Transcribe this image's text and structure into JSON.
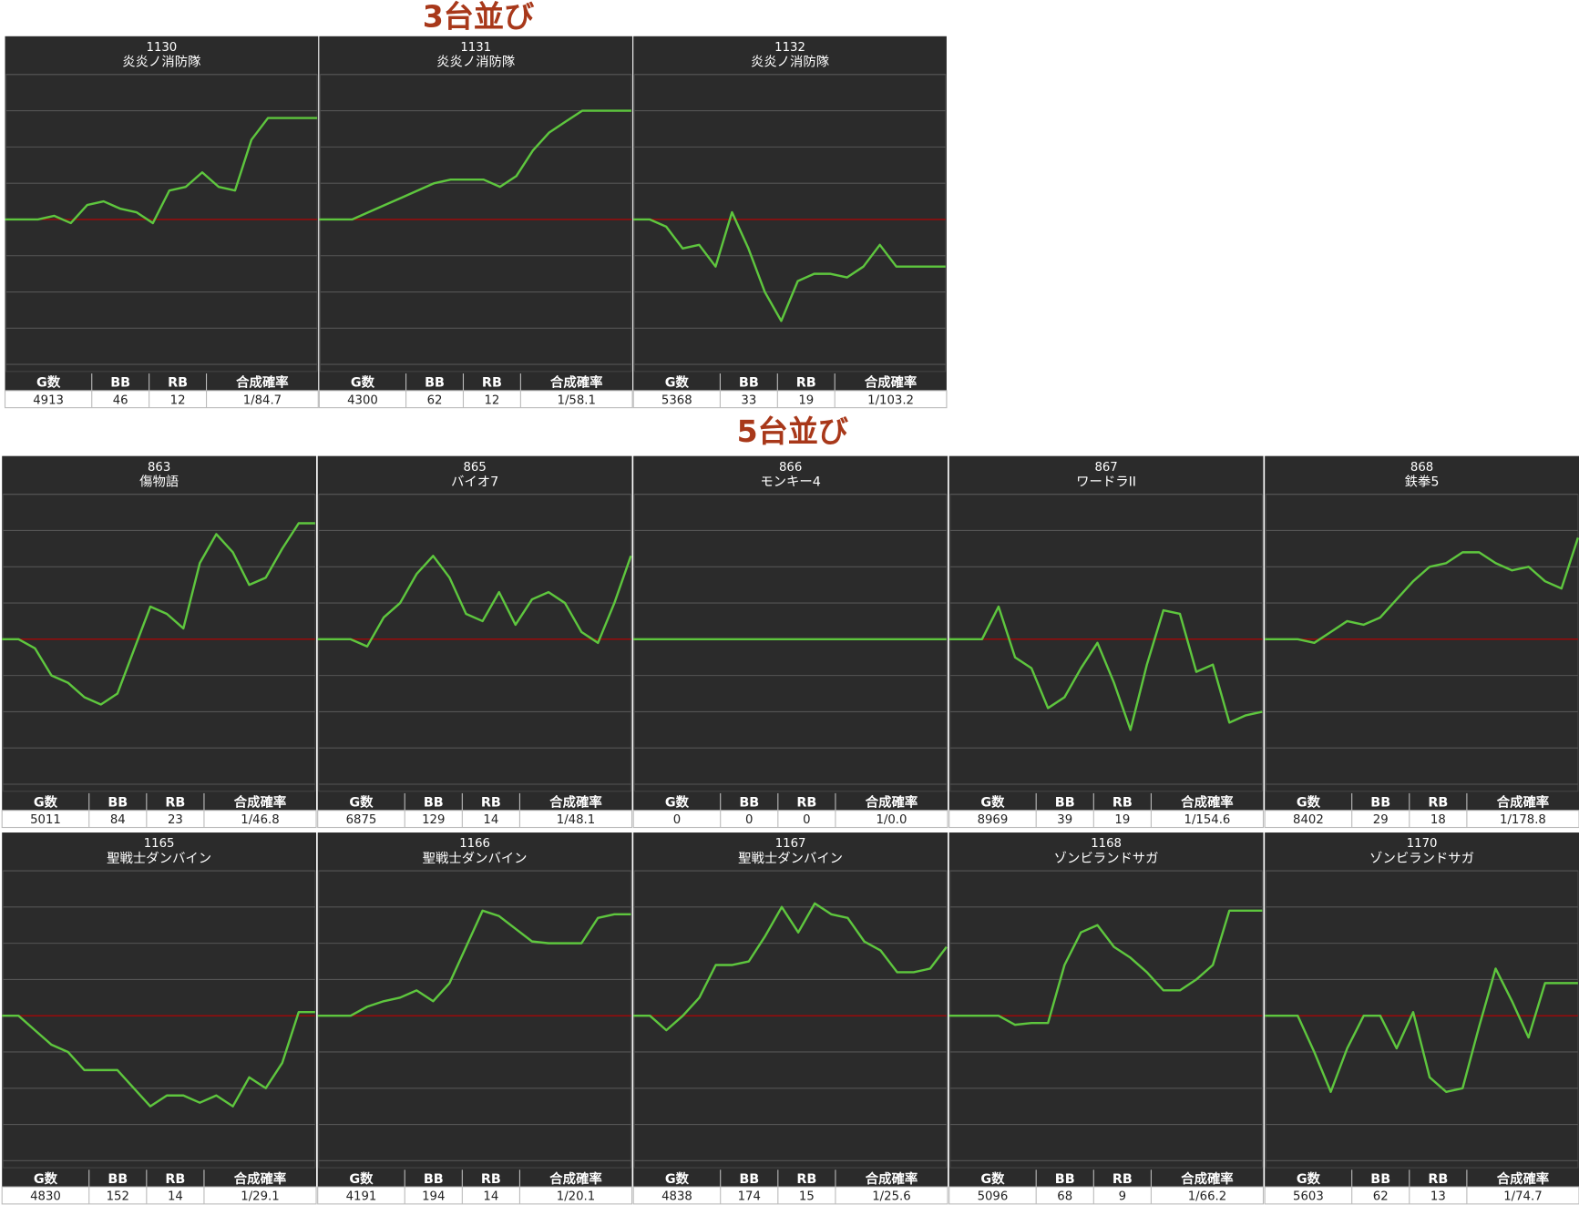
{
  "table_header": [
    "G数",
    "BB",
    "RB",
    "合成確率"
  ],
  "sections": [
    {
      "title": "3台並び",
      "panels": [
        {
          "number": 1130,
          "name": "炎炎ノ消防隊",
          "values": [
            0,
            0,
            0,
            0.1,
            -0.1,
            0.4,
            0.5,
            0.3,
            0.2,
            -0.1,
            0.8,
            0.9,
            1.3,
            0.9,
            0.8,
            2.2,
            2.8,
            2.8,
            2.8,
            2.8
          ],
          "g": 4913,
          "bb": 46,
          "rb": 12,
          "rate": "1/84.7"
        },
        {
          "number": 1131,
          "name": "炎炎ノ消防隊",
          "values": [
            0,
            0,
            0,
            0.2,
            0.4,
            0.6,
            0.8,
            1,
            1.1,
            1.1,
            1.1,
            0.9,
            1.2,
            1.9,
            2.4,
            2.7,
            3,
            3,
            3,
            3
          ],
          "g": 4300,
          "bb": 62,
          "rb": 12,
          "rate": "1/58.1"
        },
        {
          "number": 1132,
          "name": "炎炎ノ消防隊",
          "values": [
            0,
            0,
            -0.2,
            -0.8,
            -0.7,
            -1.3,
            0.2,
            -0.8,
            -2,
            -2.8,
            -1.7,
            -1.5,
            -1.5,
            -1.6,
            -1.3,
            -0.7,
            -1.3,
            -1.3,
            -1.3,
            -1.3
          ],
          "g": 5368,
          "bb": 33,
          "rb": 19,
          "rate": "1/103.2"
        }
      ]
    },
    {
      "title": "5台並び",
      "panels": [
        {
          "number": 863,
          "name": "傷物語",
          "values": [
            0,
            0,
            -0.25,
            -1,
            -1.2,
            -1.6,
            -1.8,
            -1.5,
            -0.3,
            0.9,
            0.7,
            0.3,
            2.1,
            2.9,
            2.4,
            1.5,
            1.7,
            2.5,
            3.2,
            3.2
          ],
          "g": 5011,
          "bb": 84,
          "rb": 23,
          "rate": "1/46.8"
        },
        {
          "number": 865,
          "name": "バイオ7",
          "values": [
            0,
            0,
            0,
            -0.2,
            0.6,
            1,
            1.8,
            2.3,
            1.7,
            0.7,
            0.5,
            1.3,
            0.4,
            1.1,
            1.3,
            1,
            0.2,
            -0.1,
            1,
            2.3
          ],
          "g": 6875,
          "bb": 129,
          "rb": 14,
          "rate": "1/48.1"
        },
        {
          "number": 866,
          "name": "モンキー4",
          "values": [
            0,
            0,
            0,
            0,
            0,
            0,
            0,
            0,
            0,
            0,
            0,
            0,
            0,
            0,
            0,
            0,
            0,
            0,
            0,
            0
          ],
          "g": 0,
          "bb": 0,
          "rb": 0,
          "rate": "1/0.0"
        },
        {
          "number": 867,
          "name": "ワードラII",
          "values": [
            0,
            0,
            0,
            0.9,
            -0.5,
            -0.8,
            -1.9,
            -1.6,
            -0.8,
            -0.1,
            -1.2,
            -2.5,
            -0.7,
            0.8,
            0.7,
            -0.9,
            -0.7,
            -2.3,
            -2.1,
            -2
          ],
          "g": 8969,
          "bb": 39,
          "rb": 19,
          "rate": "1/154.6"
        },
        {
          "number": 868,
          "name": "鉄拳5",
          "values": [
            0,
            0,
            0,
            -0.1,
            0.2,
            0.5,
            0.4,
            0.6,
            1.1,
            1.6,
            2,
            2.1,
            2.4,
            2.4,
            2.1,
            1.9,
            2,
            1.6,
            1.4,
            2.8
          ],
          "g": 8402,
          "bb": 29,
          "rb": 18,
          "rate": "1/178.8"
        },
        {
          "number": 1165,
          "name": "聖戦士ダンバイン",
          "values": [
            0,
            0,
            -0.4,
            -0.8,
            -1,
            -1.5,
            -1.5,
            -1.5,
            -2,
            -2.5,
            -2.2,
            -2.2,
            -2.4,
            -2.2,
            -2.5,
            -1.7,
            -2,
            -1.3,
            0.1,
            0.1
          ],
          "g": 4830,
          "bb": 152,
          "rb": 14,
          "rate": "1/29.1"
        },
        {
          "number": 1166,
          "name": "聖戦士ダンバイン",
          "values": [
            0,
            0,
            0,
            0.25,
            0.4,
            0.5,
            0.7,
            0.4,
            0.9,
            1.9,
            2.9,
            2.75,
            2.4,
            2.05,
            2,
            2,
            2,
            2.7,
            2.8,
            2.8
          ],
          "g": 4191,
          "bb": 194,
          "rb": 14,
          "rate": "1/20.1"
        },
        {
          "number": 1167,
          "name": "聖戦士ダンバイン",
          "values": [
            0,
            0,
            -0.4,
            0,
            0.5,
            1.4,
            1.4,
            1.5,
            2.2,
            3,
            2.3,
            3.1,
            2.8,
            2.7,
            2.05,
            1.8,
            1.2,
            1.2,
            1.3,
            1.9
          ],
          "g": 4838,
          "bb": 174,
          "rb": 15,
          "rate": "1/25.6"
        },
        {
          "number": 1168,
          "name": "ゾンビランドサガ",
          "values": [
            0,
            0,
            0,
            0,
            -0.25,
            -0.2,
            -0.2,
            1.4,
            2.3,
            2.5,
            1.9,
            1.6,
            1.2,
            0.7,
            0.7,
            1,
            1.4,
            2.9,
            2.9,
            2.9
          ],
          "g": 5096,
          "bb": 68,
          "rb": 9,
          "rate": "1/66.2"
        },
        {
          "number": 1170,
          "name": "ゾンビランドサガ",
          "values": [
            0,
            0,
            0,
            -1,
            -2.1,
            -0.9,
            0,
            0,
            -0.9,
            0.1,
            -1.7,
            -2.1,
            -2,
            -0.3,
            1.3,
            0.4,
            -0.6,
            0.9,
            0.9,
            0.9
          ],
          "g": 5603,
          "bb": 62,
          "rb": 13,
          "rate": "1/74.7"
        }
      ]
    }
  ]
}
